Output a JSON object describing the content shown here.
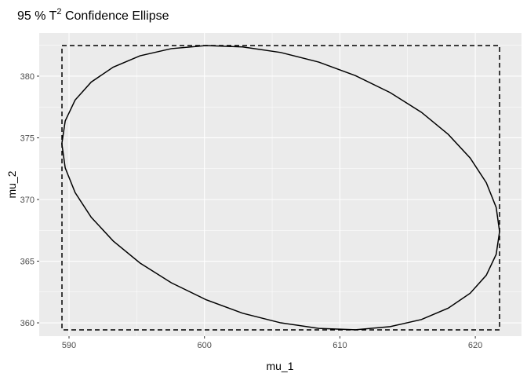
{
  "chart_data": {
    "type": "line",
    "title": [
      "95 %  T",
      "2",
      " Confidence Ellipse"
    ],
    "xlabel": "mu_1",
    "ylabel": "mu_2",
    "xlim": [
      587.8,
      623.41
    ],
    "ylim": [
      358.92,
      383.5
    ],
    "xticks": [
      590,
      600,
      610,
      620
    ],
    "yticks": [
      360,
      365,
      370,
      375,
      380
    ],
    "grid": true,
    "series": [
      {
        "color": "#000000",
        "x": [
          621.79,
          621.54,
          620.81,
          619.62,
          618.0,
          616.02,
          613.71,
          611.15,
          608.44,
          605.63,
          602.82,
          600.11,
          597.55,
          595.24,
          593.26,
          591.64,
          590.45,
          589.72,
          589.47,
          589.72,
          590.45,
          591.64,
          593.26,
          595.24,
          597.55,
          600.11,
          602.82,
          605.63,
          608.44,
          611.15,
          613.71,
          616.02,
          618.0,
          619.62,
          620.81,
          621.54,
          621.79
        ],
        "values": [
          367.4,
          365.55,
          363.86,
          362.4,
          361.19,
          360.27,
          359.69,
          359.44,
          359.55,
          360.0,
          360.78,
          361.88,
          363.25,
          364.85,
          366.64,
          368.56,
          370.56,
          372.56,
          374.52,
          376.37,
          378.06,
          379.52,
          380.73,
          381.65,
          382.23,
          382.48,
          382.37,
          381.92,
          381.14,
          380.04,
          378.67,
          377.07,
          375.28,
          373.36,
          371.36,
          369.36,
          367.4
        ]
      }
    ],
    "box": {
      "xmin": 589.48,
      "xmax": 621.79,
      "ymin": 359.43,
      "ymax": 382.48,
      "color": "#000000",
      "dashed": true
    }
  }
}
